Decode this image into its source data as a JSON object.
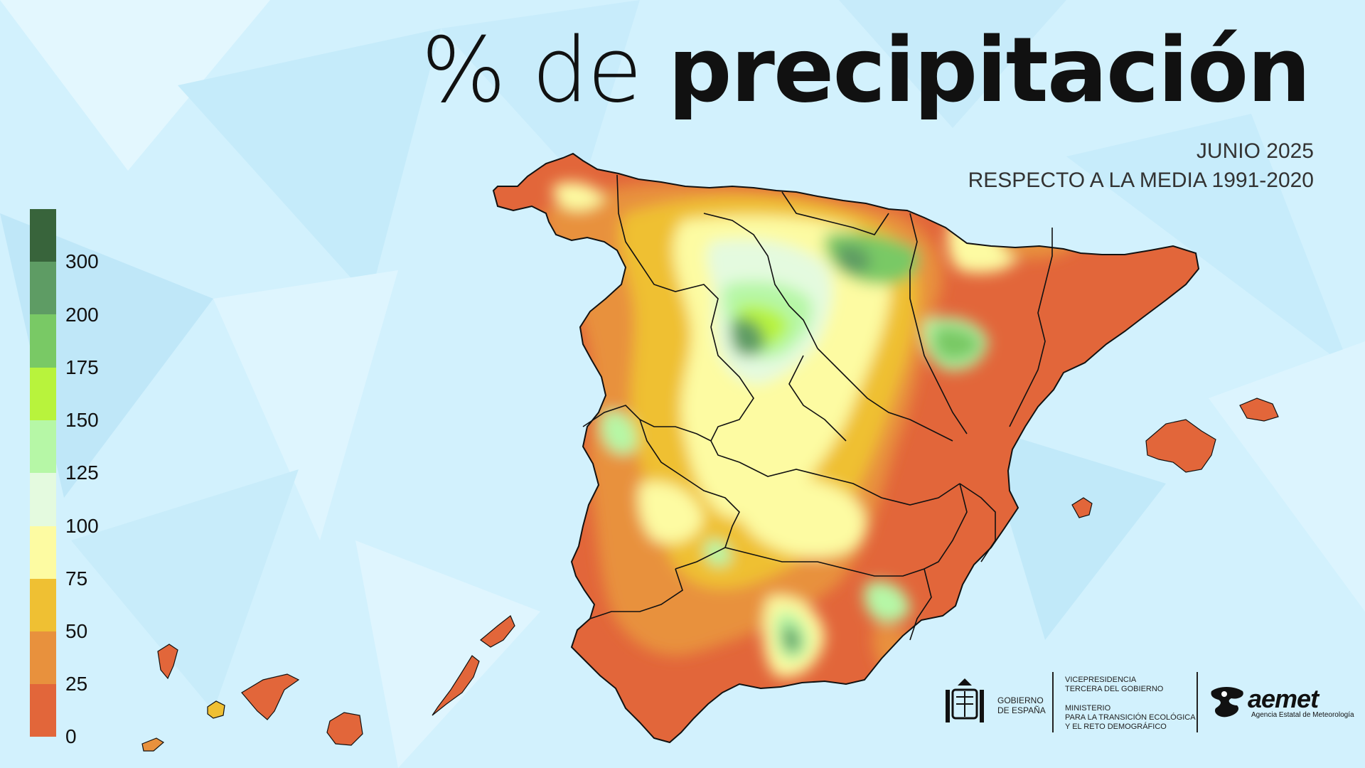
{
  "title": {
    "prefix": "% de",
    "emphasis": "precipitación"
  },
  "subtitle": {
    "line1": "JUNIO 2025",
    "line2": "RESPECTO A LA MEDIA 1991-2020"
  },
  "legend": {
    "classes": [
      {
        "range": [
          0,
          25
        ],
        "color": "#e2663a"
      },
      {
        "range": [
          25,
          50
        ],
        "color": "#e8913d"
      },
      {
        "range": [
          50,
          75
        ],
        "color": "#efc033"
      },
      {
        "range": [
          75,
          100
        ],
        "color": "#fdfba2"
      },
      {
        "range": [
          100,
          125
        ],
        "color": "#e4fadf"
      },
      {
        "range": [
          125,
          150
        ],
        "color": "#b6f7a6"
      },
      {
        "range": [
          150,
          175
        ],
        "color": "#b8f33c"
      },
      {
        "range": [
          175,
          200
        ],
        "color": "#79c965"
      },
      {
        "range": [
          200,
          300
        ],
        "color": "#5e9c64"
      },
      {
        "range": [
          300,
          null
        ],
        "color": "#38643b"
      }
    ],
    "labels": [
      "0",
      "25",
      "50",
      "75",
      "100",
      "125",
      "150",
      "175",
      "200",
      "300"
    ]
  },
  "logos": {
    "gobierno": "GOBIERNO\nDE ESPAÑA",
    "vicepresidencia": "VICEPRESIDENCIA\nTERCERA DEL GOBIERNO",
    "ministerio": "MINISTERIO\nPARA LA TRANSICIÓN ECOLÓGICA\nY EL RETO DEMOGRÁFICO",
    "aemet": "aemet",
    "aemet_sub": "Agencia Estatal de Meteorología"
  }
}
